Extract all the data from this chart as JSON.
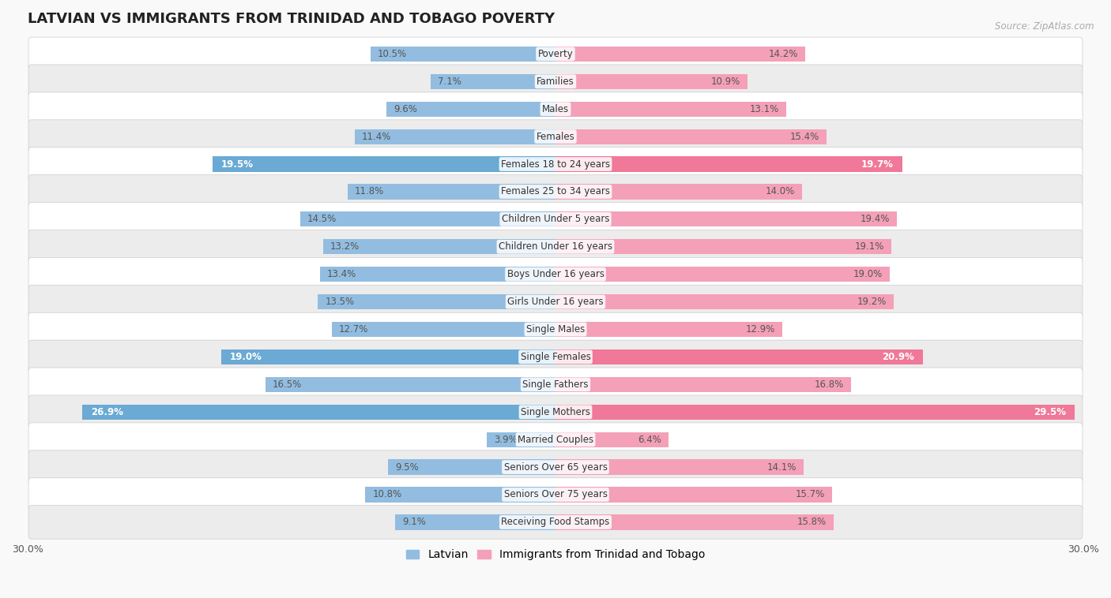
{
  "title": "LATVIAN VS IMMIGRANTS FROM TRINIDAD AND TOBAGO POVERTY",
  "source": "Source: ZipAtlas.com",
  "categories": [
    "Poverty",
    "Families",
    "Males",
    "Females",
    "Females 18 to 24 years",
    "Females 25 to 34 years",
    "Children Under 5 years",
    "Children Under 16 years",
    "Boys Under 16 years",
    "Girls Under 16 years",
    "Single Males",
    "Single Females",
    "Single Fathers",
    "Single Mothers",
    "Married Couples",
    "Seniors Over 65 years",
    "Seniors Over 75 years",
    "Receiving Food Stamps"
  ],
  "latvian": [
    10.5,
    7.1,
    9.6,
    11.4,
    19.5,
    11.8,
    14.5,
    13.2,
    13.4,
    13.5,
    12.7,
    19.0,
    16.5,
    26.9,
    3.9,
    9.5,
    10.8,
    9.1
  ],
  "immigrants": [
    14.2,
    10.9,
    13.1,
    15.4,
    19.7,
    14.0,
    19.4,
    19.1,
    19.0,
    19.2,
    12.9,
    20.9,
    16.8,
    29.5,
    6.4,
    14.1,
    15.7,
    15.8
  ],
  "latvian_color": "#92bde0",
  "immigrant_color": "#f4a0b8",
  "latvian_highlight_color": "#6aaad4",
  "immigrant_highlight_color": "#f07898",
  "highlight_rows": [
    4,
    11,
    13
  ],
  "background_color": "#f9f9f9",
  "row_colors": [
    "#ffffff",
    "#ececec"
  ],
  "xlim": 30.0,
  "legend_latvian": "Latvian",
  "legend_immigrant": "Immigrants from Trinidad and Tobago",
  "title_fontsize": 13,
  "label_fontsize": 8.5,
  "cat_fontsize": 8.5
}
